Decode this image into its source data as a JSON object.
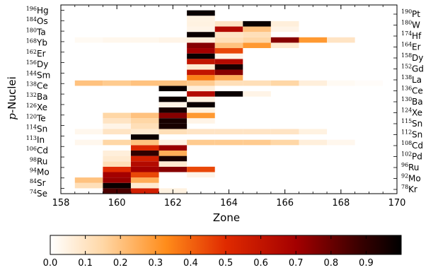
{
  "chart_data": {
    "type": "heatmap",
    "xlabel": "Zone",
    "ylabel_italic": "p",
    "ylabel_rest": "-Nuclei",
    "xlim": [
      158,
      170
    ],
    "x_ticks": [
      "158",
      "160",
      "162",
      "164",
      "166",
      "168",
      "170"
    ],
    "colorbar_ticks": [
      "0.0",
      "0.1",
      "0.2",
      "0.3",
      "0.4",
      "0.5",
      "0.6",
      "0.7",
      "0.8",
      "0.9"
    ],
    "colorbar_range": [
      0,
      1
    ],
    "left_nuclei": [
      {
        "mass": "74",
        "sym": "Se"
      },
      {
        "mass": "84",
        "sym": "Sr"
      },
      {
        "mass": "94",
        "sym": "Mo"
      },
      {
        "mass": "98",
        "sym": "Ru"
      },
      {
        "mass": "106",
        "sym": "Cd"
      },
      {
        "mass": "113",
        "sym": "In"
      },
      {
        "mass": "114",
        "sym": "Sn"
      },
      {
        "mass": "120",
        "sym": "Te"
      },
      {
        "mass": "126",
        "sym": "Xe"
      },
      {
        "mass": "132",
        "sym": "Ba"
      },
      {
        "mass": "138",
        "sym": "Ce"
      },
      {
        "mass": "144",
        "sym": "Sm"
      },
      {
        "mass": "156",
        "sym": "Dy"
      },
      {
        "mass": "162",
        "sym": "Er"
      },
      {
        "mass": "168",
        "sym": "Yb"
      },
      {
        "mass": "180",
        "sym": "Ta"
      },
      {
        "mass": "184",
        "sym": "Os"
      },
      {
        "mass": "196",
        "sym": "Hg"
      }
    ],
    "right_nuclei": [
      {
        "mass": "78",
        "sym": "Kr"
      },
      {
        "mass": "92",
        "sym": "Mo"
      },
      {
        "mass": "96",
        "sym": "Ru"
      },
      {
        "mass": "102",
        "sym": "Pd"
      },
      {
        "mass": "108",
        "sym": "Cd"
      },
      {
        "mass": "112",
        "sym": "Sn"
      },
      {
        "mass": "115",
        "sym": "Sn"
      },
      {
        "mass": "124",
        "sym": "Xe"
      },
      {
        "mass": "130",
        "sym": "Ba"
      },
      {
        "mass": "136",
        "sym": "Ce"
      },
      {
        "mass": "138",
        "sym": "La"
      },
      {
        "mass": "152",
        "sym": "Gd"
      },
      {
        "mass": "158",
        "sym": "Dy"
      },
      {
        "mass": "164",
        "sym": "Er"
      },
      {
        "mass": "174",
        "sym": "Hf"
      },
      {
        "mass": "180",
        "sym": "W"
      },
      {
        "mass": "190",
        "sym": "Pt"
      }
    ],
    "rows": 35,
    "cells": [
      {
        "row": 0,
        "zone": 159,
        "v": 0.85
      },
      {
        "row": 0,
        "zone": 160,
        "v": 0.55
      },
      {
        "row": 0,
        "zone": 161,
        "v": 0.05
      },
      {
        "row": 1,
        "zone": 158,
        "v": 0.12
      },
      {
        "row": 1,
        "zone": 159,
        "v": 0.98
      },
      {
        "row": 1,
        "zone": 160,
        "v": 0.08
      },
      {
        "row": 2,
        "zone": 158,
        "v": 0.2
      },
      {
        "row": 2,
        "zone": 159,
        "v": 0.72
      },
      {
        "row": 2,
        "zone": 160,
        "v": 0.25
      },
      {
        "row": 3,
        "zone": 159,
        "v": 0.7
      },
      {
        "row": 3,
        "zone": 160,
        "v": 0.45
      },
      {
        "row": 3,
        "zone": 162,
        "v": 0.04
      },
      {
        "row": 4,
        "zone": 159,
        "v": 0.5
      },
      {
        "row": 4,
        "zone": 160,
        "v": 0.7
      },
      {
        "row": 4,
        "zone": 161,
        "v": 0.75
      },
      {
        "row": 4,
        "zone": 162,
        "v": 0.45
      },
      {
        "row": 5,
        "zone": 159,
        "v": 0.12
      },
      {
        "row": 5,
        "zone": 160,
        "v": 0.65
      },
      {
        "row": 5,
        "zone": 161,
        "v": 0.08
      },
      {
        "row": 6,
        "zone": 159,
        "v": 0.08
      },
      {
        "row": 6,
        "zone": 160,
        "v": 0.55
      },
      {
        "row": 6,
        "zone": 161,
        "v": 0.95
      },
      {
        "row": 7,
        "zone": 159,
        "v": 0.06
      },
      {
        "row": 7,
        "zone": 160,
        "v": 0.9
      },
      {
        "row": 7,
        "zone": 161,
        "v": 0.25
      },
      {
        "row": 8,
        "zone": 160,
        "v": 0.52
      },
      {
        "row": 8,
        "zone": 161,
        "v": 0.72
      },
      {
        "row": 9,
        "zone": 158,
        "v": 0.03
      },
      {
        "row": 9,
        "zone": 159,
        "v": 0.15
      },
      {
        "row": 9,
        "zone": 160,
        "v": 0.2
      },
      {
        "row": 9,
        "zone": 161,
        "v": 0.05
      },
      {
        "row": 9,
        "zone": 162,
        "v": 0.18
      },
      {
        "row": 9,
        "zone": 163,
        "v": 0.18
      },
      {
        "row": 9,
        "zone": 164,
        "v": 0.18
      },
      {
        "row": 9,
        "zone": 165,
        "v": 0.15
      },
      {
        "row": 9,
        "zone": 166,
        "v": 0.06
      },
      {
        "row": 9,
        "zone": 167,
        "v": 0.03
      },
      {
        "row": 10,
        "zone": 160,
        "v": 0.98
      },
      {
        "row": 11,
        "zone": 158,
        "v": 0.03
      },
      {
        "row": 11,
        "zone": 159,
        "v": 0.1
      },
      {
        "row": 11,
        "zone": 160,
        "v": 0.08
      },
      {
        "row": 11,
        "zone": 161,
        "v": 0.12
      },
      {
        "row": 11,
        "zone": 162,
        "v": 0.1
      },
      {
        "row": 11,
        "zone": 163,
        "v": 0.1
      },
      {
        "row": 11,
        "zone": 164,
        "v": 0.1
      },
      {
        "row": 11,
        "zone": 165,
        "v": 0.1
      },
      {
        "row": 11,
        "zone": 166,
        "v": 0.05
      },
      {
        "row": 12,
        "zone": 159,
        "v": 0.04
      },
      {
        "row": 12,
        "zone": 160,
        "v": 0.12
      },
      {
        "row": 12,
        "zone": 161,
        "v": 0.95
      },
      {
        "row": 13,
        "zone": 159,
        "v": 0.1
      },
      {
        "row": 13,
        "zone": 160,
        "v": 0.15
      },
      {
        "row": 13,
        "zone": 161,
        "v": 0.95
      },
      {
        "row": 13,
        "zone": 162,
        "v": 0.04
      },
      {
        "row": 14,
        "zone": 159,
        "v": 0.15
      },
      {
        "row": 14,
        "zone": 160,
        "v": 0.2
      },
      {
        "row": 14,
        "zone": 161,
        "v": 0.75
      },
      {
        "row": 14,
        "zone": 162,
        "v": 0.3
      },
      {
        "row": 15,
        "zone": 161,
        "v": 0.95
      },
      {
        "row": 15,
        "zone": 162,
        "v": 0.05
      },
      {
        "row": 16,
        "zone": 161,
        "v": 0.04
      },
      {
        "row": 16,
        "zone": 162,
        "v": 0.98
      },
      {
        "row": 17,
        "zone": 161,
        "v": 0.98
      },
      {
        "row": 17,
        "zone": 162,
        "v": 0.05
      },
      {
        "row": 18,
        "zone": 162,
        "v": 0.65
      },
      {
        "row": 18,
        "zone": 163,
        "v": 0.98
      },
      {
        "row": 18,
        "zone": 164,
        "v": 0.04
      },
      {
        "row": 19,
        "zone": 161,
        "v": 0.98
      },
      {
        "row": 19,
        "zone": 162,
        "v": 0.06
      },
      {
        "row": 20,
        "zone": 158,
        "v": 0.2
      },
      {
        "row": 20,
        "zone": 159,
        "v": 0.18
      },
      {
        "row": 20,
        "zone": 160,
        "v": 0.2
      },
      {
        "row": 20,
        "zone": 161,
        "v": 0.2
      },
      {
        "row": 20,
        "zone": 162,
        "v": 0.18
      },
      {
        "row": 20,
        "zone": 163,
        "v": 0.12
      },
      {
        "row": 20,
        "zone": 164,
        "v": 0.12
      },
      {
        "row": 20,
        "zone": 165,
        "v": 0.15
      },
      {
        "row": 20,
        "zone": 166,
        "v": 0.06
      },
      {
        "row": 20,
        "zone": 167,
        "v": 0.02
      },
      {
        "row": 20,
        "zone": 168,
        "v": 0.01
      },
      {
        "row": 21,
        "zone": 162,
        "v": 0.35
      },
      {
        "row": 21,
        "zone": 163,
        "v": 0.25
      },
      {
        "row": 22,
        "zone": 162,
        "v": 0.6
      },
      {
        "row": 22,
        "zone": 163,
        "v": 0.75
      },
      {
        "row": 23,
        "zone": 162,
        "v": 0.08
      },
      {
        "row": 23,
        "zone": 163,
        "v": 0.95
      },
      {
        "row": 24,
        "zone": 162,
        "v": 0.6
      },
      {
        "row": 24,
        "zone": 163,
        "v": 0.65
      },
      {
        "row": 25,
        "zone": 162,
        "v": 0.98
      },
      {
        "row": 25,
        "zone": 163,
        "v": 0.04
      },
      {
        "row": 26,
        "zone": 162,
        "v": 0.7
      },
      {
        "row": 26,
        "zone": 163,
        "v": 0.45
      },
      {
        "row": 27,
        "zone": 162,
        "v": 0.75
      },
      {
        "row": 27,
        "zone": 163,
        "v": 0.2
      },
      {
        "row": 27,
        "zone": 164,
        "v": 0.3
      },
      {
        "row": 27,
        "zone": 165,
        "v": 0.08
      },
      {
        "row": 28,
        "zone": 158,
        "v": 0.02
      },
      {
        "row": 28,
        "zone": 159,
        "v": 0.03
      },
      {
        "row": 28,
        "zone": 160,
        "v": 0.03
      },
      {
        "row": 28,
        "zone": 161,
        "v": 0.04
      },
      {
        "row": 28,
        "zone": 162,
        "v": 0.06
      },
      {
        "row": 28,
        "zone": 163,
        "v": 0.12
      },
      {
        "row": 28,
        "zone": 164,
        "v": 0.15
      },
      {
        "row": 28,
        "zone": 165,
        "v": 0.75
      },
      {
        "row": 28,
        "zone": 166,
        "v": 0.3
      },
      {
        "row": 28,
        "zone": 167,
        "v": 0.1
      },
      {
        "row": 29,
        "zone": 162,
        "v": 0.98
      },
      {
        "row": 29,
        "zone": 163,
        "v": 0.1
      },
      {
        "row": 29,
        "zone": 164,
        "v": 0.12
      },
      {
        "row": 30,
        "zone": 162,
        "v": 0.04
      },
      {
        "row": 30,
        "zone": 163,
        "v": 0.65
      },
      {
        "row": 30,
        "zone": 164,
        "v": 0.2
      },
      {
        "row": 30,
        "zone": 165,
        "v": 0.04
      },
      {
        "row": 31,
        "zone": 162,
        "v": 0.05
      },
      {
        "row": 31,
        "zone": 163,
        "v": 0.1
      },
      {
        "row": 31,
        "zone": 164,
        "v": 0.98
      },
      {
        "row": 31,
        "zone": 165,
        "v": 0.06
      },
      {
        "row": 32,
        "zone": 162,
        "v": 0.05
      },
      {
        "row": 33,
        "zone": 162,
        "v": 0.98
      }
    ]
  }
}
